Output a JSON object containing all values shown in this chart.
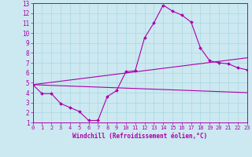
{
  "xlabel": "Windchill (Refroidissement éolien,°C)",
  "xlim": [
    0,
    23
  ],
  "ylim": [
    1,
    13
  ],
  "xticks": [
    0,
    1,
    2,
    3,
    4,
    5,
    6,
    7,
    8,
    9,
    10,
    11,
    12,
    13,
    14,
    15,
    16,
    17,
    18,
    19,
    20,
    21,
    22,
    23
  ],
  "yticks": [
    1,
    2,
    3,
    4,
    5,
    6,
    7,
    8,
    9,
    10,
    11,
    12,
    13
  ],
  "bg_color": "#cce8f0",
  "line_color": "#aa00aa",
  "grid_color": "#aad8e0",
  "line1_x": [
    0,
    1,
    2,
    3,
    4,
    5,
    6,
    7,
    8,
    9,
    10,
    11,
    12,
    13,
    14,
    15,
    16,
    17,
    18,
    19,
    20,
    21,
    22,
    23
  ],
  "line1_y": [
    4.8,
    3.9,
    3.9,
    2.9,
    2.5,
    2.1,
    1.2,
    1.2,
    3.6,
    4.2,
    6.1,
    6.2,
    9.5,
    11.0,
    12.8,
    12.2,
    11.8,
    11.1,
    8.5,
    7.2,
    7.0,
    6.9,
    6.5,
    6.3
  ],
  "line2_x": [
    0,
    23
  ],
  "line2_y": [
    4.8,
    4.0
  ],
  "line3_x": [
    0,
    23
  ],
  "line3_y": [
    4.8,
    7.5
  ]
}
